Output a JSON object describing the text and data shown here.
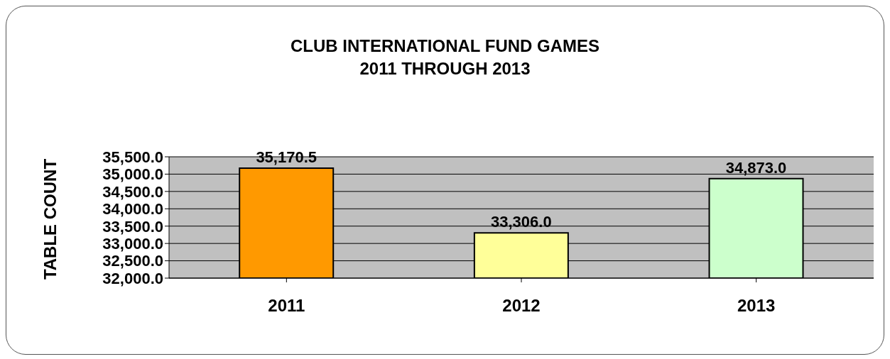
{
  "chart_data": {
    "type": "bar",
    "title": "CLUB INTERNATIONAL FUND GAMES\n2011 THROUGH 2013",
    "ylabel": "TABLE COUNT",
    "categories": [
      "2011",
      "2012",
      "2013"
    ],
    "values": [
      35170.5,
      33306.0,
      34873.0
    ],
    "colors": [
      "#ff9900",
      "#ffff99",
      "#ccffcc"
    ],
    "value_labels": [
      "35,170.5",
      "33,306.0",
      "34,873.0"
    ],
    "ylim": [
      32000,
      35500
    ],
    "yticks": [
      {
        "value": 32000,
        "label": "32,000.0"
      },
      {
        "value": 32500,
        "label": "32,500.0"
      },
      {
        "value": 33000,
        "label": "33,000.0"
      },
      {
        "value": 33500,
        "label": "33,500.0"
      },
      {
        "value": 34000,
        "label": "34,000.0"
      },
      {
        "value": 34500,
        "label": "34,500.0"
      },
      {
        "value": 35000,
        "label": "35,000.0"
      },
      {
        "value": 35500,
        "label": "35,500.0"
      }
    ],
    "grid": "y",
    "legend": false
  }
}
